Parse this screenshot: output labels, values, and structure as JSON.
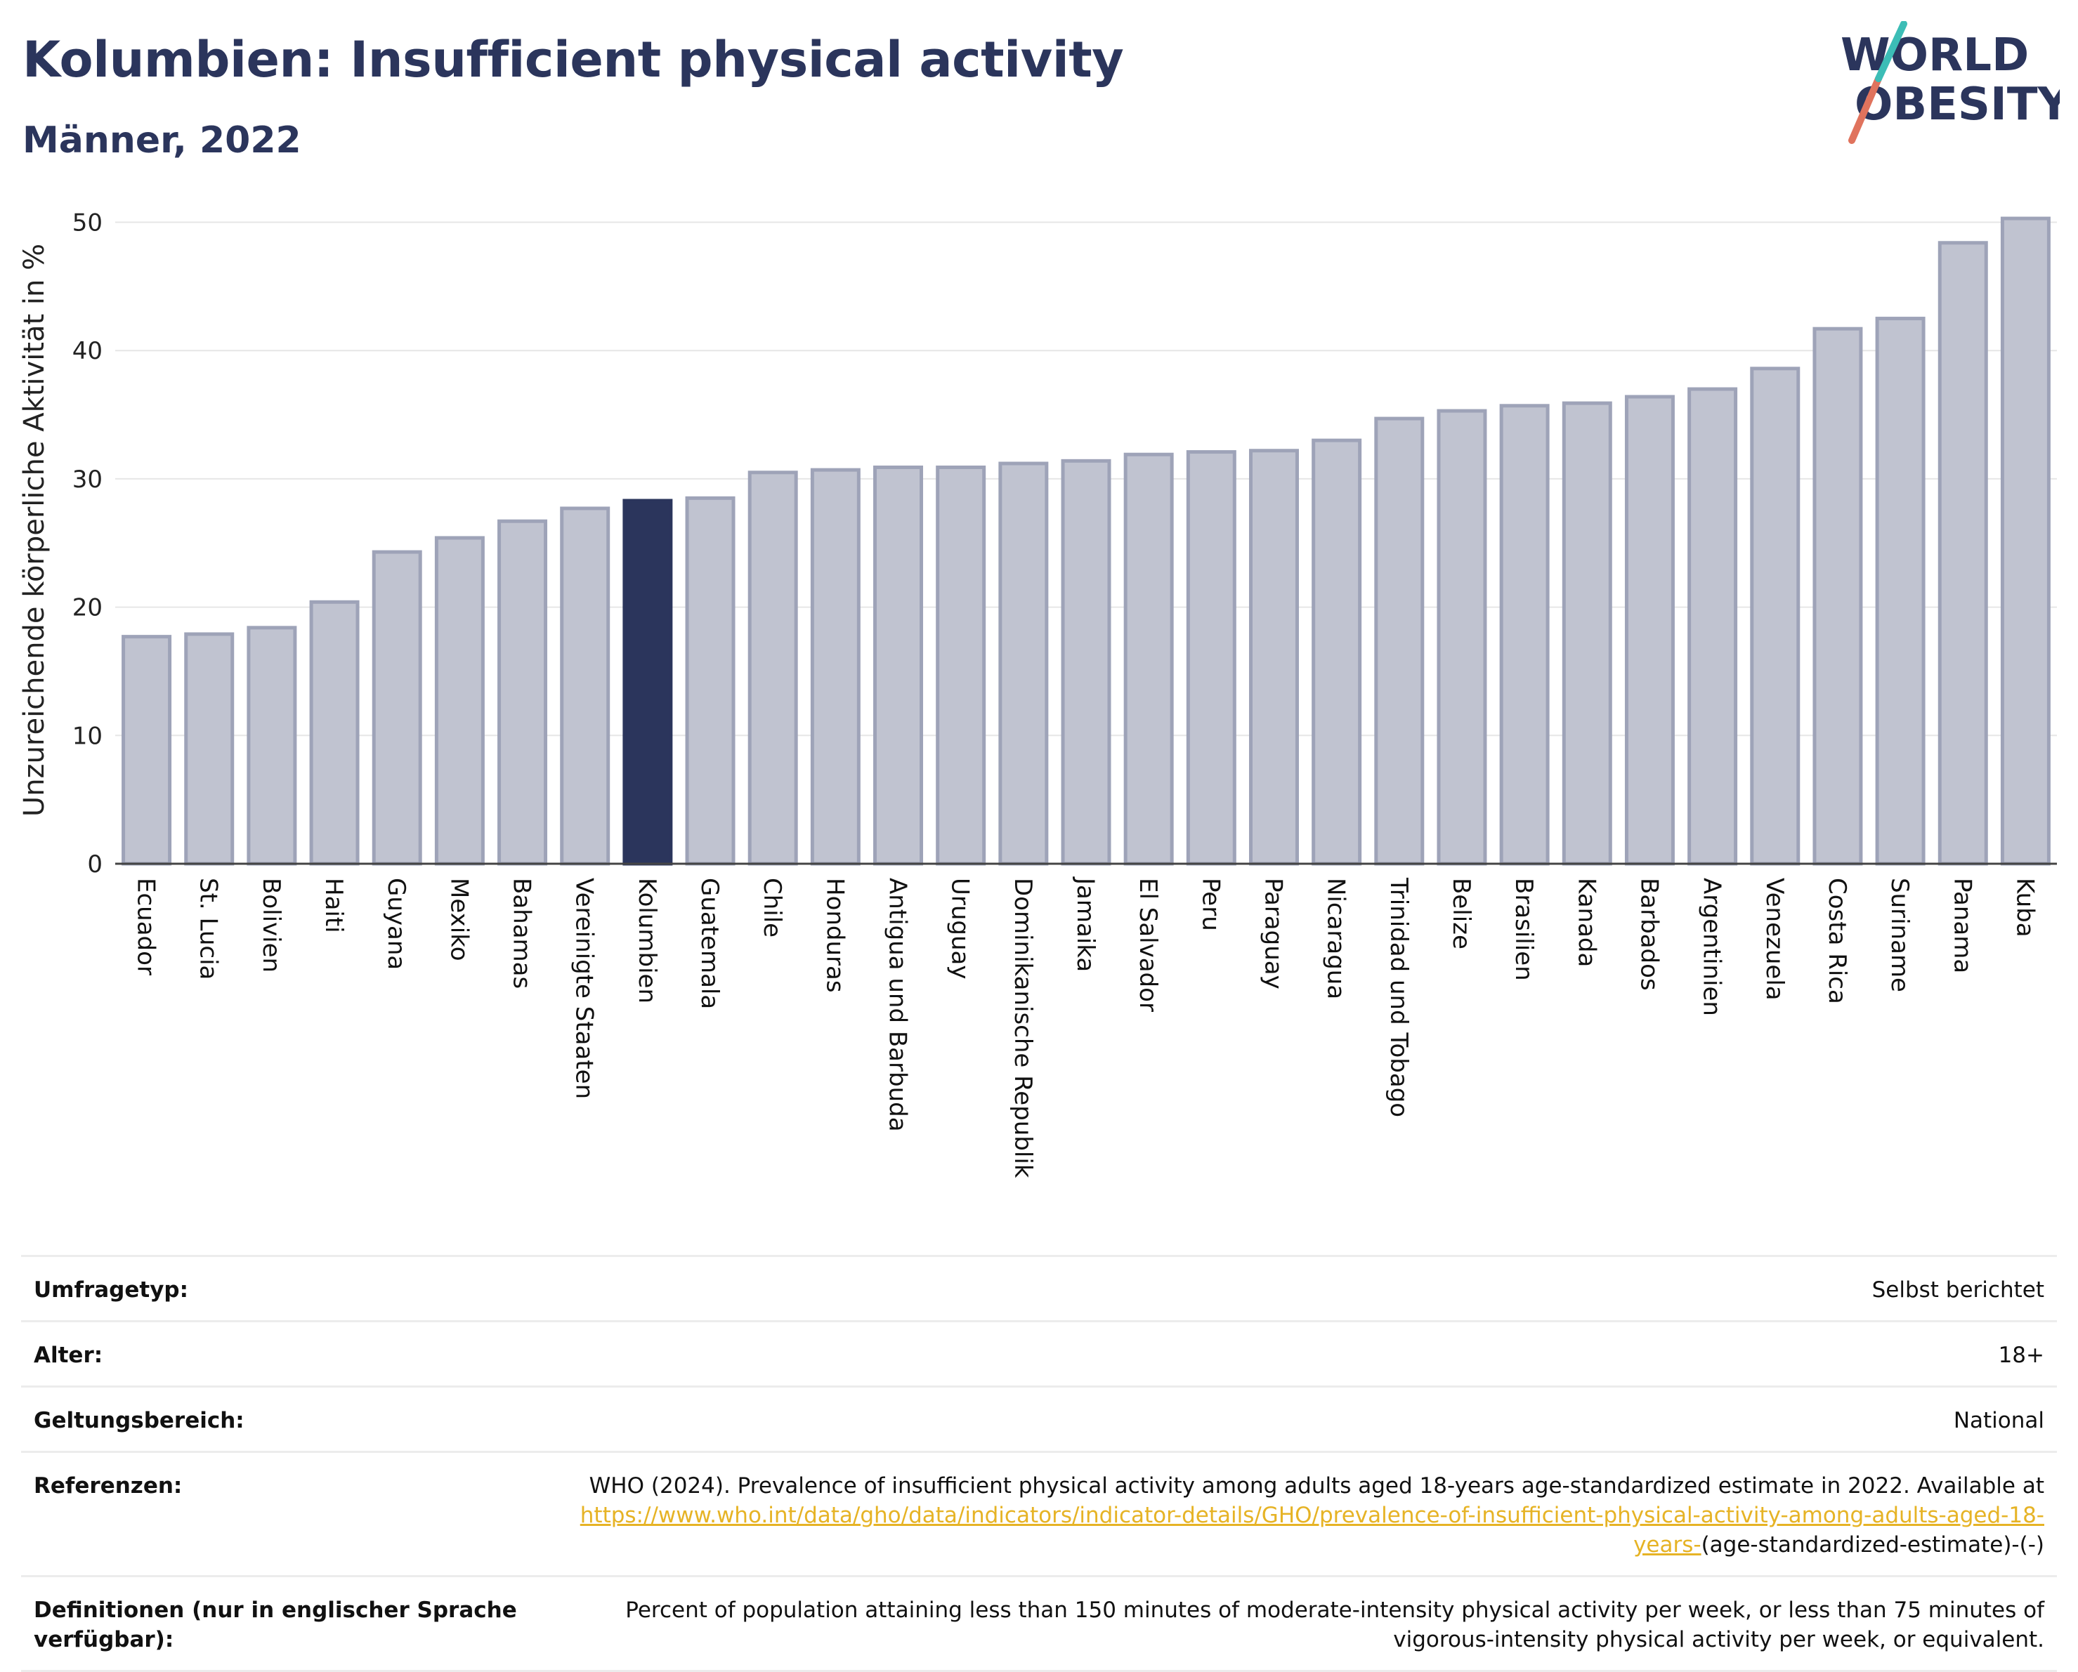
{
  "header": {
    "title": "Kolumbien: Insufficient physical activity",
    "subtitle": "Männer, 2022",
    "logo_line1": "WORLD",
    "logo_line2": "OBESITY"
  },
  "colors": {
    "bar": "#c0c3d0",
    "bar_border": "#9ea3b8",
    "highlight": "#2b355c",
    "title": "#2b355c",
    "link": "#e6b325",
    "logo_slash_red": "#e0735d",
    "logo_slash_teal": "#3cbdb6"
  },
  "chart_data": {
    "type": "bar",
    "title": "",
    "xlabel": "",
    "ylabel": "Unzureichende körperliche Aktivität in %",
    "ylim": [
      0,
      52
    ],
    "yticks": [
      0,
      10,
      20,
      30,
      40,
      50
    ],
    "grid": true,
    "highlight": "Kolumbien",
    "categories": [
      "Ecuador",
      "St. Lucia",
      "Bolivien",
      "Haiti",
      "Guyana",
      "Mexiko",
      "Bahamas",
      "Vereinigte Staaten",
      "Kolumbien",
      "Guatemala",
      "Chile",
      "Honduras",
      "Antigua und Barbuda",
      "Uruguay",
      "Dominikanische Republik",
      "Jamaika",
      "El Salvador",
      "Peru",
      "Paraguay",
      "Nicaragua",
      "Trinidad und Tobago",
      "Belize",
      "Brasilien",
      "Kanada",
      "Barbados",
      "Argentinien",
      "Venezuela",
      "Costa Rica",
      "Suriname",
      "Panama",
      "Kuba"
    ],
    "values": [
      17.7,
      17.9,
      18.4,
      20.4,
      24.3,
      25.4,
      26.7,
      27.7,
      28.3,
      28.5,
      30.5,
      30.7,
      30.9,
      30.9,
      31.2,
      31.4,
      31.9,
      32.1,
      32.2,
      33.0,
      34.7,
      35.3,
      35.7,
      35.9,
      36.4,
      37.0,
      38.6,
      41.7,
      42.5,
      48.4,
      50.3
    ]
  },
  "meta": {
    "survey_label": "Umfragetyp:",
    "survey_value": "Selbst berichtet",
    "age_label": "Alter:",
    "age_value": "18+",
    "scope_label": "Geltungsbereich:",
    "scope_value": "National",
    "ref_label": "Referenzen:",
    "ref_text": "WHO (2024). Prevalence of insufficient physical activity among adults aged 18-years age-standardized estimate in 2022. Available at",
    "ref_link": "https://www.who.int/data/gho/data/indicators/indicator-details/GHO/prevalence-of-insufficient-physical-activity-among-adults-aged-18-years-",
    "ref_suffix": "(age-standardized-estimate)-(-)",
    "def_label": "Definitionen (nur in englischer Sprache verfügbar):",
    "def_value": "Percent of population attaining less than 150 minutes of moderate-intensity physical activity per week, or less than 75 minutes of vigorous-intensity physical activity per week, or equivalent."
  }
}
